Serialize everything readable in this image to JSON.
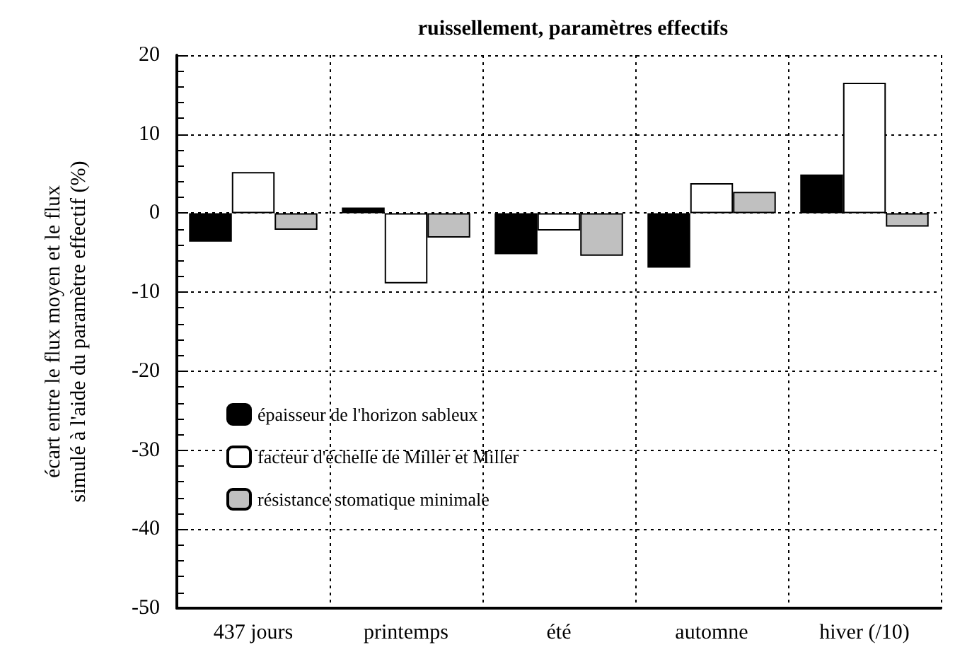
{
  "chart_data": {
    "type": "bar",
    "title": "ruissellement, paramètres effectifs",
    "ylabel": "écart entre le flux moyen et le flux\nsimulé à l'aide du paramètre effectif (%)",
    "categories": [
      "437 jours",
      "printemps",
      "été",
      "automne",
      "hiver (/10)"
    ],
    "series": [
      {
        "name": "épaisseur de l'horizon sableux",
        "color": "#000000",
        "values": [
          -3.6,
          0.7,
          -5.2,
          -6.9,
          4.9
        ]
      },
      {
        "name": "facteur d'échelle de Miller et Miller",
        "color": "#ffffff",
        "values": [
          5.2,
          -8.9,
          -2.2,
          3.8,
          16.5
        ]
      },
      {
        "name": "résistance stomatique minimale",
        "color": "#c0c0c0",
        "values": [
          -2.1,
          -3.1,
          -5.4,
          2.7,
          -1.7
        ]
      }
    ],
    "ylim": [
      -50,
      20
    ],
    "yticks": [
      -50,
      -40,
      -30,
      -20,
      -10,
      0,
      10,
      20
    ],
    "grid": true,
    "legend": "bottom left"
  }
}
